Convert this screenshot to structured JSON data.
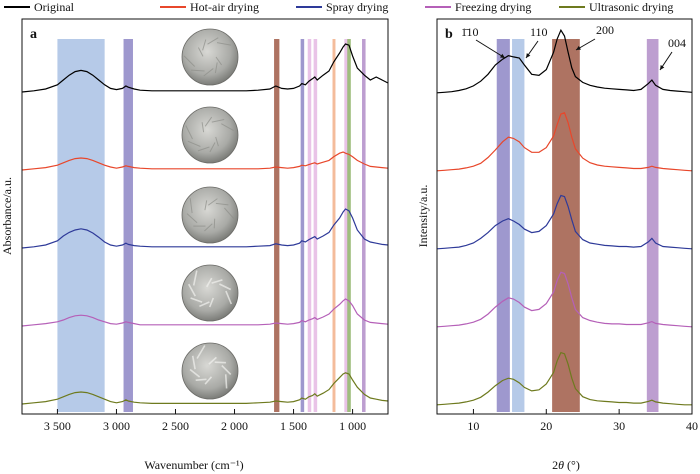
{
  "colors": {
    "original": "#000000",
    "hot_air": "#e8472b",
    "spray": "#2e3a99",
    "freezing": "#b560b8",
    "ultrasonic": "#6e7a1e",
    "band_light_blue": "#a9c1e4",
    "band_violet": "#8d86c6",
    "band_brown": "#a05a46",
    "band_pink": "#e5b9e3",
    "band_orange": "#f2b08a",
    "band_green": "#8eb267",
    "band_purple": "#b28dc8"
  },
  "legend": {
    "placement": "top",
    "items": [
      {
        "key": "original",
        "label": "Original",
        "color": "#000000"
      },
      {
        "key": "hot_air",
        "label": "Hot-air drying",
        "color": "#e8472b"
      },
      {
        "key": "spray",
        "label": "Spray drying",
        "color": "#2e3a99"
      },
      {
        "key": "freezing",
        "label": "Freezing drying",
        "color": "#b560b8"
      },
      {
        "key": "ultrasonic",
        "label": "Ultrasonic drying",
        "color": "#6e7a1e"
      }
    ]
  },
  "chart_data": [
    {
      "type": "line",
      "panel": "a",
      "panel_label": "a",
      "xlabel": "Wavenumber (cm⁻¹)",
      "ylabel": "Absorbance/a.u.",
      "xlim": [
        3800,
        700
      ],
      "x_reversed": true,
      "x_ticks": [
        3500,
        3000,
        2500,
        2000,
        1500,
        1000
      ],
      "x_tick_labels": [
        "3 500",
        "3 000",
        "2 500",
        "2 000",
        "1 500",
        "1 000"
      ],
      "y_ticks_shown": false,
      "grid": false,
      "highlight_bands": [
        {
          "from": 3500,
          "to": 3100,
          "color": "#a9c1e4"
        },
        {
          "from": 2940,
          "to": 2860,
          "color": "#8d86c6"
        },
        {
          "from": 1665,
          "to": 1620,
          "color": "#a05a46"
        },
        {
          "from": 1440,
          "to": 1410,
          "color": "#8d86c6"
        },
        {
          "from": 1380,
          "to": 1350,
          "color": "#e5b9e3"
        },
        {
          "from": 1330,
          "to": 1300,
          "color": "#e5b9e3"
        },
        {
          "from": 1170,
          "to": 1145,
          "color": "#f2b08a"
        },
        {
          "from": 1070,
          "to": 1040,
          "color": "#e5b9e3"
        },
        {
          "from": 1045,
          "to": 1015,
          "color": "#8eb267"
        },
        {
          "from": 920,
          "to": 890,
          "color": "#b28dc8"
        }
      ],
      "insets": [
        "sample-image-original",
        "sample-image-hot-air",
        "sample-image-spray",
        "sample-image-freezing",
        "sample-image-ultrasonic"
      ],
      "x": [
        3800,
        3700,
        3600,
        3500,
        3450,
        3400,
        3350,
        3300,
        3250,
        3200,
        3150,
        3100,
        3050,
        3000,
        2950,
        2920,
        2900,
        2850,
        2800,
        2700,
        2500,
        2300,
        2100,
        1900,
        1800,
        1700,
        1650,
        1600,
        1550,
        1500,
        1450,
        1430,
        1400,
        1370,
        1340,
        1320,
        1300,
        1250,
        1200,
        1160,
        1110,
        1080,
        1060,
        1030,
        1000,
        960,
        900,
        850,
        800,
        750,
        700
      ],
      "series": [
        {
          "name": "Original",
          "key": "original",
          "offset": 4,
          "values": [
            0,
            0.02,
            0.05,
            0.12,
            0.2,
            0.28,
            0.34,
            0.36,
            0.34,
            0.28,
            0.2,
            0.12,
            0.06,
            0.04,
            0.06,
            0.1,
            0.08,
            0.05,
            0.03,
            0.02,
            0.02,
            0.02,
            0.02,
            0.02,
            0.03,
            0.05,
            0.1,
            0.06,
            0.05,
            0.06,
            0.1,
            0.14,
            0.12,
            0.18,
            0.22,
            0.25,
            0.2,
            0.28,
            0.35,
            0.5,
            0.65,
            0.75,
            0.8,
            0.78,
            0.6,
            0.4,
            0.28,
            0.2,
            0.25,
            0.2,
            0.15
          ]
        },
        {
          "name": "Hot-air drying",
          "key": "hot_air",
          "offset": 3,
          "values": [
            0,
            0.02,
            0.04,
            0.08,
            0.12,
            0.16,
            0.19,
            0.2,
            0.19,
            0.16,
            0.12,
            0.08,
            0.05,
            0.03,
            0.05,
            0.07,
            0.06,
            0.04,
            0.03,
            0.02,
            0.02,
            0.02,
            0.02,
            0.02,
            0.02,
            0.03,
            0.05,
            0.04,
            0.03,
            0.04,
            0.06,
            0.08,
            0.07,
            0.09,
            0.11,
            0.12,
            0.1,
            0.13,
            0.16,
            0.22,
            0.28,
            0.3,
            0.28,
            0.26,
            0.22,
            0.16,
            0.1,
            0.06,
            0.05,
            0.04,
            0.03
          ]
        },
        {
          "name": "Spray drying",
          "key": "spray",
          "offset": 2,
          "values": [
            0,
            0.02,
            0.05,
            0.12,
            0.2,
            0.26,
            0.3,
            0.32,
            0.3,
            0.25,
            0.18,
            0.1,
            0.05,
            0.03,
            0.05,
            0.08,
            0.06,
            0.04,
            0.03,
            0.02,
            0.02,
            0.02,
            0.02,
            0.02,
            0.03,
            0.04,
            0.07,
            0.05,
            0.04,
            0.05,
            0.08,
            0.12,
            0.1,
            0.14,
            0.17,
            0.19,
            0.15,
            0.2,
            0.26,
            0.38,
            0.5,
            0.6,
            0.65,
            0.62,
            0.5,
            0.3,
            0.15,
            0.1,
            0.08,
            0.06,
            0.05
          ]
        },
        {
          "name": "Freezing drying",
          "key": "freezing",
          "offset": 1,
          "values": [
            0,
            0.02,
            0.04,
            0.07,
            0.1,
            0.14,
            0.17,
            0.18,
            0.17,
            0.14,
            0.1,
            0.07,
            0.04,
            0.03,
            0.05,
            0.07,
            0.06,
            0.04,
            0.02,
            0.02,
            0.02,
            0.02,
            0.02,
            0.02,
            0.02,
            0.03,
            0.05,
            0.04,
            0.03,
            0.04,
            0.06,
            0.09,
            0.07,
            0.1,
            0.12,
            0.14,
            0.11,
            0.15,
            0.2,
            0.28,
            0.36,
            0.42,
            0.45,
            0.42,
            0.34,
            0.2,
            0.1,
            0.06,
            0.05,
            0.04,
            0.03
          ]
        },
        {
          "name": "Ultrasonic drying",
          "key": "ultrasonic",
          "offset": 0,
          "values": [
            0,
            0.02,
            0.04,
            0.08,
            0.12,
            0.16,
            0.19,
            0.2,
            0.19,
            0.16,
            0.12,
            0.08,
            0.04,
            0.02,
            0.04,
            0.07,
            0.05,
            0.03,
            0.02,
            0.01,
            0.01,
            0.01,
            0.01,
            0.01,
            0.02,
            0.03,
            0.05,
            0.04,
            0.03,
            0.04,
            0.07,
            0.1,
            0.08,
            0.12,
            0.14,
            0.17,
            0.13,
            0.18,
            0.24,
            0.34,
            0.44,
            0.5,
            0.52,
            0.5,
            0.4,
            0.28,
            0.16,
            0.1,
            0.08,
            0.06,
            0.05
          ]
        }
      ]
    },
    {
      "type": "line",
      "panel": "b",
      "panel_label": "b",
      "xlabel": "2θ (°)",
      "ylabel": "Intensity/a.u.",
      "xlim": [
        5,
        40
      ],
      "x_ticks": [
        10,
        20,
        30,
        40
      ],
      "x_tick_labels": [
        "10",
        "20",
        "30",
        "40"
      ],
      "y_ticks_shown": false,
      "grid": false,
      "highlight_bands": [
        {
          "from": 13.2,
          "to": 15.0,
          "color": "#8d86c6"
        },
        {
          "from": 15.3,
          "to": 17.0,
          "color": "#a9c1e4"
        },
        {
          "from": 20.8,
          "to": 24.6,
          "color": "#a05a46"
        },
        {
          "from": 33.8,
          "to": 35.4,
          "color": "#b28dc8"
        }
      ],
      "peak_annotations": [
        {
          "text": "110",
          "overline_char": "1",
          "prefix": "1",
          "display": "1̄10",
          "x": 14.8
        },
        {
          "text": "110",
          "x": 16.3
        },
        {
          "text": "200",
          "x": 22.5
        },
        {
          "text": "004",
          "x": 34.5
        }
      ],
      "x": [
        5,
        6,
        7,
        8,
        9,
        10,
        11,
        12,
        13,
        14,
        14.8,
        15.5,
        16.3,
        17,
        18,
        19,
        20,
        21,
        21.5,
        22,
        22.5,
        23,
        23.5,
        24,
        25,
        26,
        27,
        28,
        29,
        30,
        31,
        32,
        33,
        34,
        34.5,
        35,
        36,
        37,
        38,
        39,
        40
      ],
      "series": [
        {
          "name": "Original",
          "key": "original",
          "offset": 4,
          "values": [
            0.02,
            0.03,
            0.04,
            0.06,
            0.09,
            0.14,
            0.22,
            0.34,
            0.5,
            0.6,
            0.66,
            0.64,
            0.62,
            0.5,
            0.34,
            0.32,
            0.42,
            0.72,
            0.95,
            1.1,
            1.0,
            0.72,
            0.45,
            0.3,
            0.2,
            0.15,
            0.12,
            0.1,
            0.09,
            0.08,
            0.07,
            0.06,
            0.08,
            0.18,
            0.24,
            0.15,
            0.08,
            0.06,
            0.05,
            0.04,
            0.03
          ]
        },
        {
          "name": "Hot-air drying",
          "key": "hot_air",
          "offset": 3,
          "values": [
            0.02,
            0.03,
            0.04,
            0.05,
            0.07,
            0.1,
            0.15,
            0.25,
            0.38,
            0.52,
            0.6,
            0.58,
            0.52,
            0.42,
            0.34,
            0.34,
            0.42,
            0.62,
            0.82,
            1.0,
            1.02,
            0.85,
            0.6,
            0.4,
            0.24,
            0.16,
            0.12,
            0.1,
            0.09,
            0.08,
            0.07,
            0.06,
            0.06,
            0.08,
            0.1,
            0.08,
            0.06,
            0.05,
            0.04,
            0.03,
            0.02
          ]
        },
        {
          "name": "Spray drying",
          "key": "spray",
          "offset": 2,
          "values": [
            0.02,
            0.03,
            0.04,
            0.05,
            0.08,
            0.12,
            0.2,
            0.3,
            0.42,
            0.5,
            0.54,
            0.5,
            0.44,
            0.36,
            0.3,
            0.32,
            0.42,
            0.62,
            0.8,
            0.94,
            0.92,
            0.75,
            0.52,
            0.32,
            0.18,
            0.12,
            0.1,
            0.08,
            0.07,
            0.06,
            0.06,
            0.05,
            0.06,
            0.14,
            0.2,
            0.12,
            0.06,
            0.05,
            0.04,
            0.03,
            0.02
          ]
        },
        {
          "name": "Freezing drying",
          "key": "freezing",
          "offset": 1,
          "values": [
            0.02,
            0.03,
            0.04,
            0.05,
            0.07,
            0.1,
            0.15,
            0.24,
            0.36,
            0.46,
            0.52,
            0.5,
            0.44,
            0.36,
            0.3,
            0.32,
            0.42,
            0.62,
            0.82,
            0.96,
            0.94,
            0.76,
            0.52,
            0.32,
            0.18,
            0.13,
            0.1,
            0.08,
            0.07,
            0.07,
            0.06,
            0.06,
            0.06,
            0.09,
            0.11,
            0.08,
            0.06,
            0.05,
            0.04,
            0.03,
            0.02
          ]
        },
        {
          "name": "Ultrasonic drying",
          "key": "ultrasonic",
          "offset": 0,
          "values": [
            0.02,
            0.03,
            0.04,
            0.05,
            0.07,
            0.1,
            0.15,
            0.24,
            0.35,
            0.44,
            0.48,
            0.46,
            0.4,
            0.32,
            0.26,
            0.28,
            0.38,
            0.58,
            0.78,
            0.92,
            0.9,
            0.72,
            0.48,
            0.3,
            0.16,
            0.11,
            0.09,
            0.08,
            0.07,
            0.06,
            0.06,
            0.05,
            0.05,
            0.08,
            0.1,
            0.07,
            0.05,
            0.04,
            0.03,
            0.02,
            0.02
          ]
        }
      ]
    }
  ]
}
